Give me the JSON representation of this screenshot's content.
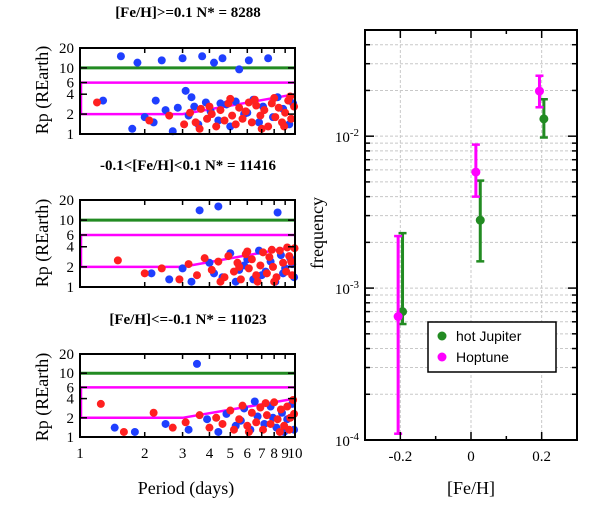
{
  "chart_data": [
    {
      "type": "scatter",
      "title": "[Fe/H]>=0.1 N* = 8288",
      "xlabel": "Period (days)",
      "ylabel": "Rp (REarth)",
      "xscale": "log",
      "yscale": "log",
      "xlim": [
        1,
        10
      ],
      "ylim": [
        1,
        20
      ],
      "yticks": [
        1,
        2,
        4,
        6,
        10,
        20
      ],
      "reference_lines": {
        "color": "#228B22",
        "y": 10
      },
      "box": {
        "color": "#FF00FF",
        "upper_y": 6,
        "lower_y_start": 2,
        "break_x": 3,
        "lower_y_end": 4
      },
      "series": [
        {
          "color": "#1F3FFF",
          "points": [
            [
              1.28,
              3.2
            ],
            [
              1.55,
              15
            ],
            [
              1.75,
              1.2
            ],
            [
              1.85,
              12
            ],
            [
              2.0,
              1.8
            ],
            [
              2.25,
              3.2
            ],
            [
              2.4,
              13
            ],
            [
              2.5,
              2.3
            ],
            [
              2.7,
              1.1
            ],
            [
              2.85,
              2.5
            ],
            [
              3.0,
              14
            ],
            [
              3.1,
              4.5
            ],
            [
              3.2,
              1.9
            ],
            [
              3.4,
              2.6
            ],
            [
              3.55,
              1.4
            ],
            [
              3.7,
              15
            ],
            [
              3.85,
              3.0
            ],
            [
              4.05,
              2.2
            ],
            [
              4.2,
              12
            ],
            [
              4.4,
              1.6
            ],
            [
              4.6,
              14
            ],
            [
              4.8,
              2.8
            ],
            [
              5.0,
              1.3
            ],
            [
              5.3,
              3.1
            ],
            [
              5.5,
              9.5
            ],
            [
              5.8,
              2.0
            ],
            [
              6.1,
              13
            ],
            [
              6.4,
              3.3
            ],
            [
              6.8,
              1.5
            ],
            [
              7.1,
              2.6
            ],
            [
              7.5,
              14
            ],
            [
              7.9,
              1.8
            ],
            [
              8.3,
              3.6
            ],
            [
              8.8,
              2.4
            ],
            [
              9.4,
              1.4
            ],
            [
              9.8,
              2.9
            ],
            [
              2.2,
              1.5
            ],
            [
              3.3,
              3.6
            ],
            [
              4.5,
              2.9
            ],
            [
              6.0,
              2.1
            ]
          ]
        },
        {
          "color": "#FF2020",
          "points": [
            [
              1.2,
              3.0
            ],
            [
              2.1,
              1.6
            ],
            [
              2.6,
              1.9
            ],
            [
              3.05,
              1.4
            ],
            [
              3.25,
              2.1
            ],
            [
              3.45,
              1.5
            ],
            [
              3.65,
              2.4
            ],
            [
              3.9,
              1.7
            ],
            [
              4.1,
              2.0
            ],
            [
              4.3,
              1.3
            ],
            [
              4.5,
              2.3
            ],
            [
              4.7,
              1.6
            ],
            [
              4.9,
              2.9
            ],
            [
              5.1,
              1.9
            ],
            [
              5.3,
              1.4
            ],
            [
              5.5,
              2.5
            ],
            [
              5.7,
              1.7
            ],
            [
              5.9,
              2.2
            ],
            [
              6.1,
              3.0
            ],
            [
              6.3,
              1.5
            ],
            [
              6.6,
              2.7
            ],
            [
              6.9,
              1.9
            ],
            [
              7.2,
              2.3
            ],
            [
              7.5,
              1.3
            ],
            [
              7.8,
              2.9
            ],
            [
              8.1,
              1.8
            ],
            [
              8.4,
              2.5
            ],
            [
              8.7,
              1.5
            ],
            [
              9.0,
              2.1
            ],
            [
              9.3,
              3.2
            ],
            [
              9.6,
              1.7
            ],
            [
              9.9,
              2.6
            ],
            [
              5.0,
              3.4
            ],
            [
              6.5,
              3.3
            ],
            [
              8.0,
              3.5
            ],
            [
              9.5,
              3.7
            ],
            [
              4.0,
              2.6
            ],
            [
              3.6,
              1.2
            ],
            [
              7.0,
              1.2
            ],
            [
              8.9,
              1.3
            ]
          ]
        }
      ]
    },
    {
      "type": "scatter",
      "title": "-0.1<[Fe/H]<0.1 N* = 11416",
      "xlabel": "Period (days)",
      "ylabel": "Rp (REarth)",
      "xscale": "log",
      "yscale": "log",
      "xlim": [
        1,
        10
      ],
      "ylim": [
        1,
        20
      ],
      "yticks": [
        1,
        2,
        4,
        6,
        10,
        20
      ],
      "reference_lines": {
        "color": "#228B22",
        "y": 10
      },
      "box": {
        "color": "#FF00FF",
        "upper_y": 6,
        "lower_y_start": 2,
        "break_x": 3,
        "lower_y_end": 4
      },
      "series": [
        {
          "color": "#1F3FFF",
          "points": [
            [
              3.6,
              14
            ],
            [
              4.4,
              16
            ],
            [
              8.3,
              13
            ],
            [
              2.15,
              1.6
            ],
            [
              2.6,
              1.3
            ],
            [
              3.0,
              1.9
            ],
            [
              3.3,
              1.2
            ],
            [
              4.0,
              2.3
            ],
            [
              4.6,
              1.4
            ],
            [
              5.0,
              3.2
            ],
            [
              5.5,
              1.8
            ],
            [
              6.0,
              2.6
            ],
            [
              6.4,
              1.3
            ],
            [
              6.8,
              3.5
            ],
            [
              7.3,
              1.7
            ],
            [
              7.7,
              2.4
            ],
            [
              8.1,
              1.2
            ],
            [
              8.6,
              3.0
            ],
            [
              9.0,
              1.9
            ],
            [
              9.5,
              2.7
            ],
            [
              9.9,
              1.4
            ],
            [
              5.3,
              1.2
            ],
            [
              7.0,
              1.5
            ],
            [
              8.8,
              1.6
            ],
            [
              9.7,
              2.2
            ],
            [
              5.8,
              2.1
            ],
            [
              4.2,
              1.6
            ]
          ]
        },
        {
          "color": "#FF2020",
          "points": [
            [
              1.5,
              2.5
            ],
            [
              2.0,
              1.6
            ],
            [
              2.4,
              1.9
            ],
            [
              2.9,
              1.3
            ],
            [
              3.2,
              2.2
            ],
            [
              3.5,
              1.5
            ],
            [
              3.8,
              2.7
            ],
            [
              4.1,
              1.8
            ],
            [
              4.4,
              2.4
            ],
            [
              4.7,
              1.4
            ],
            [
              4.9,
              2.9
            ],
            [
              5.2,
              1.7
            ],
            [
              5.4,
              2.3
            ],
            [
              5.6,
              1.3
            ],
            [
              5.9,
              3.1
            ],
            [
              6.1,
              1.9
            ],
            [
              6.3,
              2.6
            ],
            [
              6.6,
              1.5
            ],
            [
              6.9,
              2.1
            ],
            [
              7.1,
              3.3
            ],
            [
              7.4,
              1.6
            ],
            [
              7.6,
              2.8
            ],
            [
              7.9,
              2.0
            ],
            [
              8.2,
              1.4
            ],
            [
              8.5,
              3.5
            ],
            [
              8.8,
              2.3
            ],
            [
              9.1,
              1.7
            ],
            [
              9.4,
              2.9
            ],
            [
              9.7,
              1.5
            ],
            [
              9.95,
              3.8
            ],
            [
              6.0,
              3.4
            ],
            [
              7.8,
              3.6
            ],
            [
              9.2,
              3.9
            ],
            [
              8.0,
              1.2
            ],
            [
              6.7,
              1.2
            ],
            [
              5.5,
              2.0
            ],
            [
              4.5,
              1.2
            ],
            [
              9.6,
              2.4
            ]
          ]
        }
      ]
    },
    {
      "type": "scatter",
      "title": "[Fe/H]<=-0.1 N* = 11023",
      "xlabel": "Period (days)",
      "ylabel": "Rp (REarth)",
      "xscale": "log",
      "yscale": "log",
      "xlim": [
        1,
        10
      ],
      "ylim": [
        1,
        20
      ],
      "xticks": [
        1,
        2,
        3,
        4,
        5,
        6,
        7,
        8,
        9,
        10
      ],
      "yticks": [
        1,
        2,
        4,
        6,
        10,
        20
      ],
      "reference_lines": {
        "color": "#228B22",
        "y": 10
      },
      "box": {
        "color": "#FF00FF",
        "upper_y": 6,
        "lower_y_start": 2,
        "break_x": 3,
        "lower_y_end": 4
      },
      "series": [
        {
          "color": "#1F3FFF",
          "points": [
            [
              3.5,
              14
            ],
            [
              1.45,
              1.4
            ],
            [
              1.8,
              1.2
            ],
            [
              2.5,
              1.6
            ],
            [
              3.2,
              1.3
            ],
            [
              3.9,
              1.9
            ],
            [
              4.4,
              1.2
            ],
            [
              4.8,
              2.3
            ],
            [
              5.3,
              1.5
            ],
            [
              5.8,
              2.8
            ],
            [
              6.2,
              1.3
            ],
            [
              6.7,
              2.1
            ],
            [
              7.2,
              1.6
            ],
            [
              7.7,
              3.0
            ],
            [
              8.2,
              1.4
            ],
            [
              8.7,
              2.4
            ],
            [
              9.2,
              1.9
            ],
            [
              9.7,
              3.3
            ],
            [
              9.9,
              1.3
            ],
            [
              5.6,
              1.8
            ],
            [
              7.9,
              2.0
            ],
            [
              8.9,
              1.2
            ],
            [
              6.5,
              3.6
            ]
          ]
        },
        {
          "color": "#FF2020",
          "points": [
            [
              1.25,
              3.3
            ],
            [
              1.6,
              1.2
            ],
            [
              2.2,
              2.4
            ],
            [
              2.7,
              1.4
            ],
            [
              3.1,
              1.7
            ],
            [
              3.6,
              2.2
            ],
            [
              4.0,
              1.4
            ],
            [
              4.3,
              2.0
            ],
            [
              4.6,
              1.6
            ],
            [
              5.0,
              2.6
            ],
            [
              5.2,
              1.3
            ],
            [
              5.5,
              1.9
            ],
            [
              5.7,
              3.1
            ],
            [
              6.0,
              1.5
            ],
            [
              6.3,
              2.4
            ],
            [
              6.6,
              1.7
            ],
            [
              6.9,
              2.9
            ],
            [
              7.1,
              1.3
            ],
            [
              7.4,
              2.2
            ],
            [
              7.7,
              1.6
            ],
            [
              8.0,
              3.5
            ],
            [
              8.3,
              1.9
            ],
            [
              8.6,
              2.7
            ],
            [
              8.9,
              1.5
            ],
            [
              9.2,
              3.0
            ],
            [
              9.5,
              2.0
            ],
            [
              9.8,
              3.8
            ],
            [
              9.9,
              2.3
            ],
            [
              7.3,
              3.4
            ],
            [
              8.5,
              1.2
            ],
            [
              6.1,
              1.2
            ],
            [
              9.4,
              1.3
            ]
          ]
        }
      ]
    },
    {
      "type": "scatter",
      "xlabel": "[Fe/H]",
      "ylabel": "frequency",
      "yscale": "log",
      "xlim": [
        -0.3,
        0.3
      ],
      "ylim": [
        0.0001,
        0.05
      ],
      "xticks": [
        -0.2,
        0,
        0.2
      ],
      "xtick_labels": [
        "-0.2",
        "0",
        "0.2"
      ],
      "ytick_labels": [
        "10-4",
        "10-3",
        "10-2"
      ],
      "grid": true,
      "legend_position": "bottom-right",
      "series": [
        {
          "name": "hot Jupiter",
          "color": "#228B22",
          "x": [
            -0.2,
            0.02,
            0.2
          ],
          "y": [
            0.0007,
            0.0028,
            0.013
          ],
          "yerr_low": [
            0.00058,
            0.0015,
            0.0098
          ],
          "yerr_high": [
            0.0023,
            0.0051,
            0.0175
          ]
        },
        {
          "name": "Hoptune",
          "color": "#FF00FF",
          "x": [
            -0.2,
            0.02,
            0.2
          ],
          "y": [
            0.00065,
            0.0058,
            0.0198
          ],
          "yerr_low": [
            0.00011,
            0.004,
            0.0155
          ],
          "yerr_high": [
            0.0022,
            0.0088,
            0.025
          ]
        }
      ]
    }
  ]
}
